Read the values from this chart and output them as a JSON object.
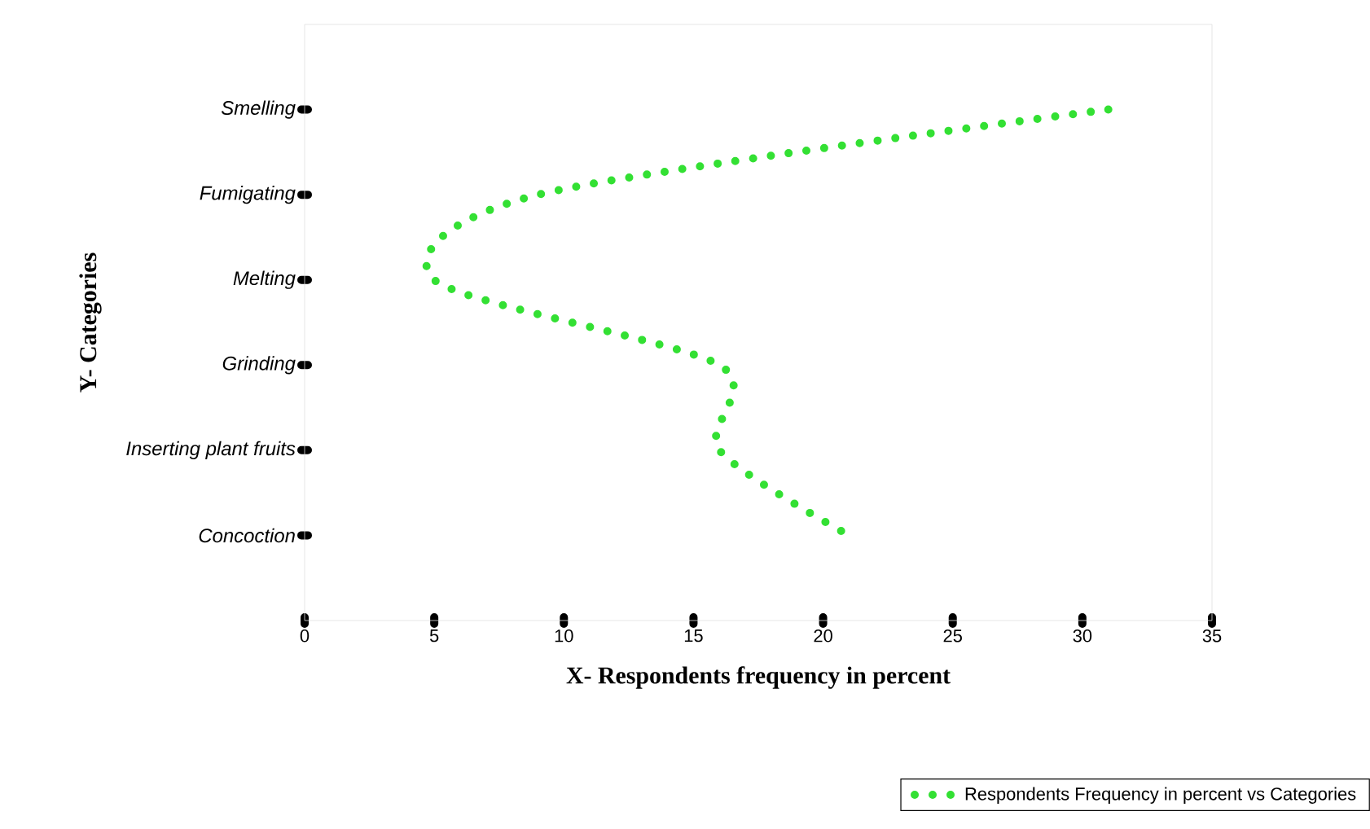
{
  "chart_data": {
    "type": "line",
    "orientation": "horizontal",
    "xlabel": "X- Respondents frequency in percent",
    "ylabel": "Y- Categories",
    "categories": [
      "Smelling",
      "Fumigating",
      "Melting",
      "Grinding",
      "Inserting plant fruits",
      "Concoction"
    ],
    "series": [
      {
        "name": "Respondents Frequency in percent vs Categories",
        "color": "#33e033",
        "values": [
          31,
          9,
          5,
          16,
          16,
          21
        ]
      }
    ],
    "xlim": [
      0,
      35
    ],
    "xticks": [
      0,
      5,
      10,
      15,
      20,
      25,
      30,
      35
    ],
    "line_style": "dotted",
    "marker": "none",
    "legend": "bottom right",
    "grid": false
  }
}
